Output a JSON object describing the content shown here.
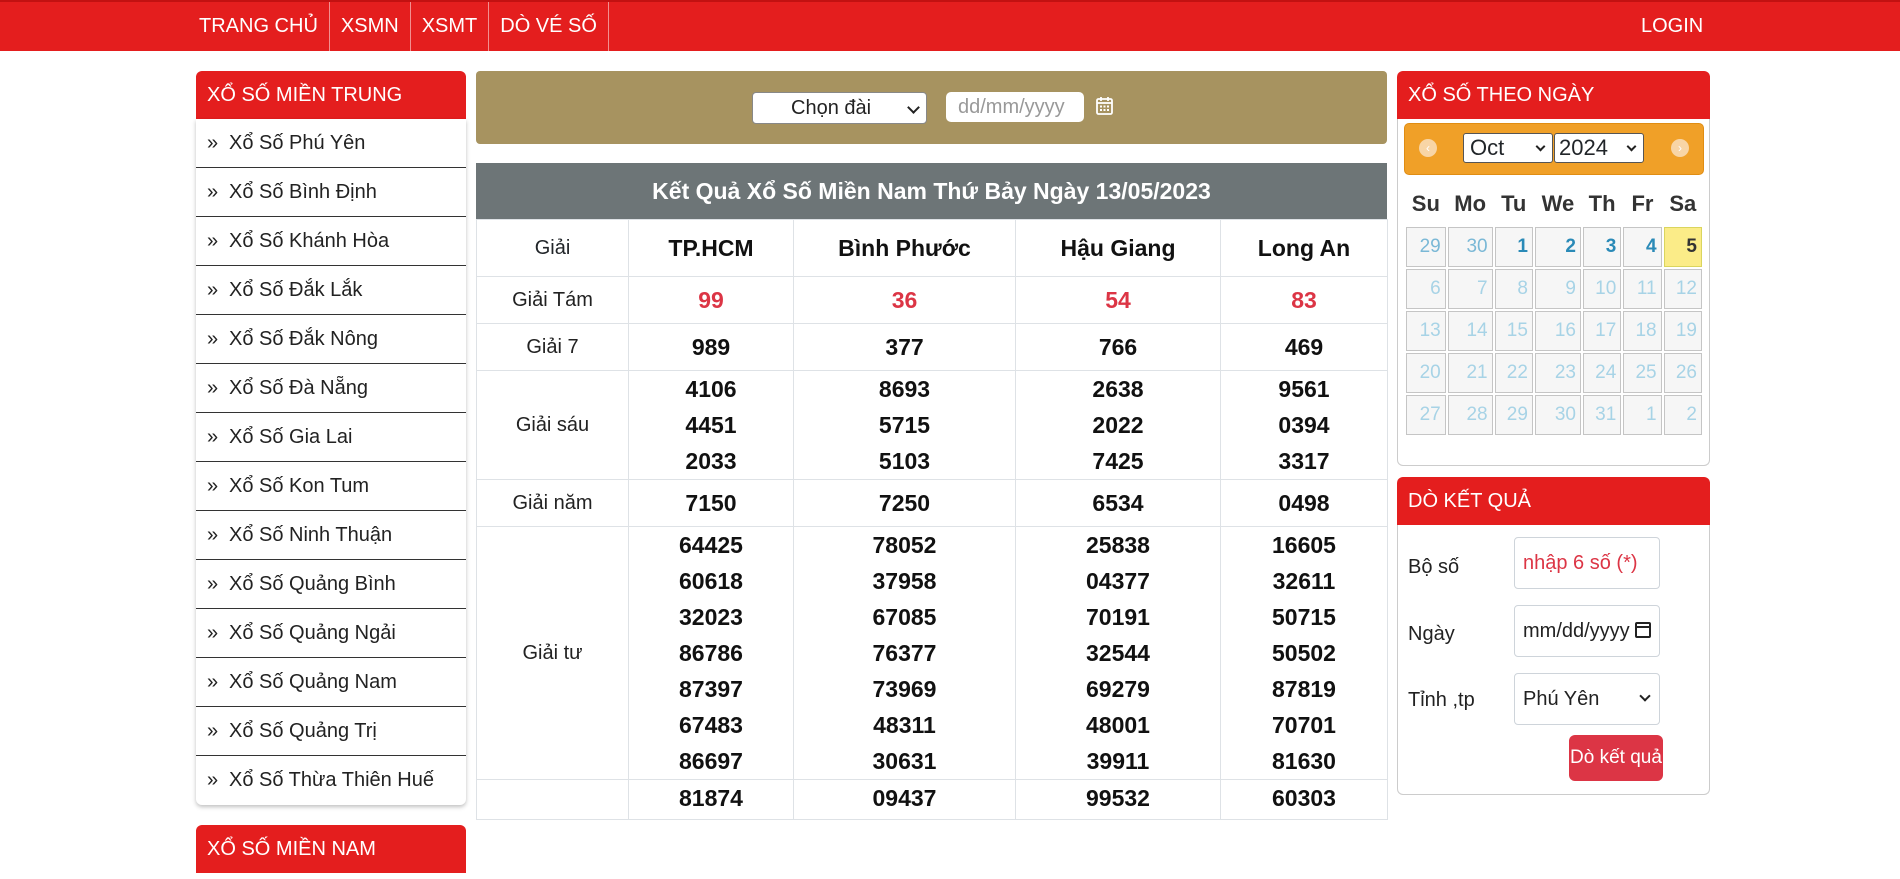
{
  "nav": {
    "items": [
      "TRANG CHỦ",
      "XSMN",
      "XSMT",
      "DÒ VÉ SỐ"
    ],
    "login": "LOGIN"
  },
  "left": {
    "title": "XỔ SỐ MIỀN TRUNG",
    "chevron": "»",
    "provinces": [
      "Xổ Số Phú Yên",
      "Xổ Số Bình Định",
      "Xổ Số Khánh Hòa",
      "Xổ Số Đắk Lắk",
      "Xổ Số Đắk Nông",
      "Xổ Số Đà Nẵng",
      "Xổ Số Gia Lai",
      "Xổ Số Kon Tum",
      "Xổ Số Ninh Thuận",
      "Xổ Số Quảng Bình",
      "Xổ Số Quảng Ngải",
      "Xổ Số Quảng Nam",
      "Xổ Số Quảng Trị",
      "Xổ Số Thừa Thiên Huế"
    ],
    "title2": "XỔ SỐ MIỀN NAM"
  },
  "filter": {
    "select_value": "Chọn đài",
    "date_placeholder": "dd/mm/yyyy"
  },
  "result": {
    "title": "Kết Quả Xổ Số Miền Nam Thứ Bảy Ngày 13/05/2023",
    "header_label": "Giải",
    "provinces": [
      "TP.HCM",
      "Bình Phước",
      "Hậu Giang",
      "Long An"
    ],
    "rows": [
      {
        "label": "Giải Tám",
        "red": true,
        "values": [
          [
            "99"
          ],
          [
            "36"
          ],
          [
            "54"
          ],
          [
            "83"
          ]
        ]
      },
      {
        "label": "Giải 7",
        "red": false,
        "values": [
          [
            "989"
          ],
          [
            "377"
          ],
          [
            "766"
          ],
          [
            "469"
          ]
        ]
      },
      {
        "label": "Giải sáu",
        "red": false,
        "values": [
          [
            "4106",
            "4451",
            "2033"
          ],
          [
            "8693",
            "5715",
            "5103"
          ],
          [
            "2638",
            "2022",
            "7425"
          ],
          [
            "9561",
            "0394",
            "3317"
          ]
        ]
      },
      {
        "label": "Giải năm",
        "red": false,
        "values": [
          [
            "7150"
          ],
          [
            "7250"
          ],
          [
            "6534"
          ],
          [
            "0498"
          ]
        ]
      },
      {
        "label": "Giải tư",
        "red": false,
        "values": [
          [
            "64425",
            "60618",
            "32023",
            "86786",
            "87397",
            "67483",
            "86697"
          ],
          [
            "78052",
            "37958",
            "67085",
            "76377",
            "73969",
            "48311",
            "30631"
          ],
          [
            "25838",
            "04377",
            "70191",
            "32544",
            "69279",
            "48001",
            "39911"
          ],
          [
            "16605",
            "32611",
            "50715",
            "50502",
            "87819",
            "70701",
            "81630"
          ]
        ]
      },
      {
        "label": "",
        "red": false,
        "values": [
          [
            "81874"
          ],
          [
            "09437"
          ],
          [
            "99532"
          ],
          [
            "60303"
          ]
        ]
      }
    ]
  },
  "calendar": {
    "title": "XỔ SỐ THEO NGÀY",
    "month": "Oct",
    "year": "2024",
    "prev_icon": "‹",
    "next_icon": "›",
    "weekdays": [
      "Su",
      "Mo",
      "Tu",
      "We",
      "Th",
      "Fr",
      "Sa"
    ],
    "weeks": [
      [
        "29",
        "30",
        "1",
        "2",
        "3",
        "4",
        "5"
      ],
      [
        "6",
        "7",
        "8",
        "9",
        "10",
        "11",
        "12"
      ],
      [
        "13",
        "14",
        "15",
        "16",
        "17",
        "18",
        "19"
      ],
      [
        "20",
        "21",
        "22",
        "23",
        "24",
        "25",
        "26"
      ],
      [
        "27",
        "28",
        "29",
        "30",
        "31",
        "1",
        "2"
      ]
    ],
    "today": "5"
  },
  "check": {
    "title": "DÒ KẾT QUẢ",
    "bo_so_label": "Bộ số",
    "bo_so_placeholder": "nhập 6 số (*)",
    "ngay_label": "Ngày",
    "ngay_value": "mm/dd/yyyy",
    "tinh_label": "Tỉnh ,tp",
    "tinh_value": "Phú Yên",
    "button": "Dò kết quả"
  }
}
